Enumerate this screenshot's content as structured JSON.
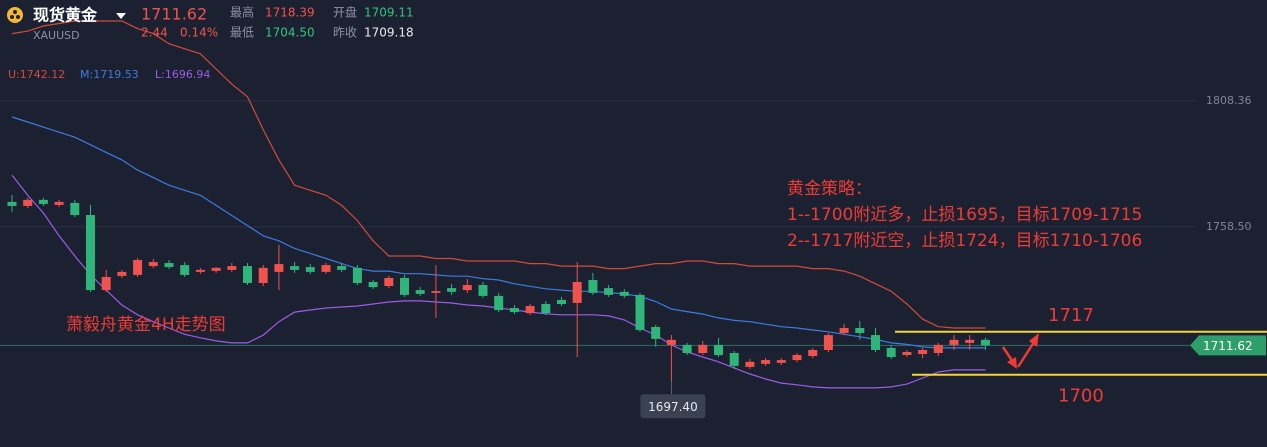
{
  "header": {
    "name": "现货黄金",
    "symbol": "XAUUSD",
    "price": "1711.62",
    "change": "2.44",
    "change_pct": "0.14%",
    "high_label": "最高",
    "high": "1718.39",
    "open_label": "开盘",
    "open": "1709.11",
    "low_label": "最低",
    "low": "1704.50",
    "prev_close_label": "昨收",
    "prev_close": "1709.18"
  },
  "chart_data": {
    "type": "candlestick",
    "open": [
      1768.4,
      1766.8,
      1769.2,
      1767.2,
      1768.0,
      1763.2,
      1733.5,
      1739.1,
      1739.5,
      1743.0,
      1744.2,
      1743.4,
      1740.7,
      1741.1,
      1741.5,
      1743.0,
      1736.3,
      1740.7,
      1743.0,
      1742.6,
      1740.7,
      1743.0,
      1742.3,
      1736.7,
      1735.1,
      1738.3,
      1733.5,
      1732.4,
      1734.3,
      1733.5,
      1735.5,
      1731.2,
      1726.4,
      1724.4,
      1728.0,
      1729.6,
      1728.4,
      1737.5,
      1734.3,
      1732.8,
      1731.6,
      1718.9,
      1711.8,
      1711.8,
      1708.6,
      1711.8,
      1708.6,
      1703.1,
      1704.3,
      1704.7,
      1705.8,
      1707.4,
      1709.8,
      1716.5,
      1718.5,
      1715.7,
      1710.6,
      1707.8,
      1708.2,
      1708.6,
      1711.8,
      1712.6,
      1713.8
    ],
    "high": [
      1771.1,
      1770.0,
      1770.0,
      1769.2,
      1769.2,
      1767.2,
      1741.5,
      1741.5,
      1746.2,
      1745.8,
      1745.4,
      1744.6,
      1742.2,
      1742.6,
      1744.2,
      1744.2,
      1743.4,
      1751.4,
      1744.6,
      1743.8,
      1744.2,
      1744.2,
      1743.4,
      1737.5,
      1739.1,
      1739.5,
      1734.7,
      1743.4,
      1735.9,
      1737.9,
      1736.7,
      1732.4,
      1727.6,
      1728.0,
      1729.2,
      1730.8,
      1744.6,
      1740.3,
      1735.5,
      1733.9,
      1732.4,
      1719.7,
      1715.7,
      1712.6,
      1713.4,
      1714.6,
      1709.4,
      1706.2,
      1706.6,
      1706.6,
      1708.6,
      1710.6,
      1716.5,
      1720.1,
      1721.3,
      1718.5,
      1711.8,
      1709.8,
      1710.6,
      1712.6,
      1715.7,
      1715.7,
      1714.6
    ],
    "low": [
      1764.4,
      1766.0,
      1766.8,
      1766.4,
      1762.4,
      1732.8,
      1732.8,
      1738.3,
      1738.7,
      1742.2,
      1741.8,
      1738.7,
      1739.9,
      1740.3,
      1740.7,
      1735.5,
      1735.1,
      1733.5,
      1740.3,
      1739.9,
      1739.9,
      1740.7,
      1735.5,
      1733.9,
      1734.3,
      1730.8,
      1731.2,
      1722.5,
      1731.6,
      1732.4,
      1730.4,
      1724.8,
      1724.0,
      1723.6,
      1723.6,
      1727.2,
      1707.0,
      1731.6,
      1730.8,
      1730.4,
      1716.9,
      1711.0,
      1697.4,
      1707.8,
      1707.8,
      1707.0,
      1702.3,
      1702.3,
      1703.5,
      1703.9,
      1705.0,
      1706.6,
      1709.0,
      1715.7,
      1713.8,
      1709.0,
      1706.2,
      1707.0,
      1706.6,
      1707.4,
      1709.8,
      1709.8,
      1709.8
    ],
    "close": [
      1766.8,
      1769.2,
      1767.6,
      1768.4,
      1763.2,
      1733.5,
      1738.7,
      1740.7,
      1745.4,
      1744.6,
      1742.6,
      1739.5,
      1741.5,
      1742.3,
      1743.0,
      1736.3,
      1742.3,
      1743.8,
      1741.5,
      1740.7,
      1743.4,
      1741.5,
      1736.3,
      1734.7,
      1738.3,
      1731.6,
      1732.0,
      1733.1,
      1732.8,
      1735.5,
      1731.2,
      1725.6,
      1724.8,
      1727.2,
      1724.4,
      1728.0,
      1736.7,
      1732.4,
      1731.6,
      1731.2,
      1717.7,
      1714.2,
      1713.8,
      1708.6,
      1711.8,
      1707.8,
      1703.5,
      1705.1,
      1705.8,
      1705.8,
      1707.8,
      1709.8,
      1715.7,
      1718.5,
      1716.5,
      1709.8,
      1707.0,
      1709.0,
      1709.8,
      1711.8,
      1713.8,
      1713.8,
      1711.62
    ],
    "up_color": "#f0524d",
    "down_color": "#2fb57a",
    "bands": [
      {
        "name": "U:1742.12",
        "color": "#d24a3c",
        "values": [
          1835,
          1836,
          1838,
          1839,
          1840,
          1840,
          1840,
          1840,
          1837,
          1835,
          1831,
          1829,
          1827,
          1821,
          1815,
          1810,
          1797,
          1785,
          1775,
          1773,
          1771,
          1767,
          1761,
          1753,
          1747,
          1747,
          1747,
          1746,
          1746,
          1745,
          1745,
          1745,
          1745,
          1744,
          1744,
          1743,
          1743,
          1743,
          1742,
          1742,
          1743,
          1744,
          1744,
          1745,
          1745,
          1744,
          1744,
          1743,
          1743,
          1743,
          1743,
          1742,
          1742,
          1741,
          1739,
          1736,
          1733,
          1728,
          1722,
          1719,
          1718.5,
          1718.5,
          1718.5
        ]
      },
      {
        "name": "M:1719.53",
        "color": "#3d7be0",
        "values": [
          1802,
          1800,
          1798,
          1796,
          1794,
          1791,
          1788,
          1785,
          1781,
          1778,
          1775,
          1773,
          1771,
          1767,
          1763,
          1759,
          1755,
          1753,
          1750,
          1748,
          1746,
          1744,
          1742,
          1741,
          1741,
          1740,
          1740,
          1739.5,
          1739,
          1739,
          1738,
          1737.5,
          1736,
          1735,
          1734,
          1733.5,
          1733,
          1733,
          1732.5,
          1732,
          1731,
          1729,
          1726,
          1725,
          1724,
          1722.5,
          1721.5,
          1721,
          1720,
          1719,
          1718.5,
          1717.7,
          1717,
          1716,
          1715,
          1714,
          1712.6,
          1712,
          1711,
          1710.6,
          1710.6,
          1710.6,
          1710.6
        ]
      },
      {
        "name": "L:1696.94",
        "color": "#9b5de5",
        "values": [
          1779,
          1771,
          1764,
          1755,
          1747,
          1739.5,
          1733.5,
          1727.6,
          1723.7,
          1721,
          1718.5,
          1716,
          1714.6,
          1713.4,
          1712.6,
          1712.6,
          1715.7,
          1721,
          1724.8,
          1725.6,
          1726.4,
          1726.8,
          1727.2,
          1728,
          1728.8,
          1729.2,
          1729.2,
          1728.8,
          1728.4,
          1727.6,
          1727.2,
          1726.4,
          1725.6,
          1724.8,
          1724.1,
          1723.7,
          1723.7,
          1723.7,
          1723.3,
          1721.7,
          1718.5,
          1715.7,
          1711.8,
          1709,
          1707,
          1705.1,
          1702.7,
          1700.3,
          1698.3,
          1696.7,
          1696,
          1695.2,
          1694.8,
          1694.8,
          1694.8,
          1694.8,
          1695.2,
          1696.3,
          1698.7,
          1701.1,
          1701.9,
          1701.9,
          1701.9
        ]
      }
    ],
    "ylim": [
      1671.4,
      1848.3
    ],
    "yticks": [
      {
        "value": 1808.36,
        "label": "1808.36"
      },
      {
        "value": 1758.5,
        "label": "1758.50"
      }
    ],
    "grid": true,
    "last_price": {
      "value": 1711.62,
      "label": "1711.62",
      "color": "#2e9e6a"
    },
    "low_marker": {
      "value": 1697.4,
      "label": "1697.40"
    },
    "levels": [
      1717,
      1700
    ],
    "level_color": "#f2d43a",
    "annotations": {
      "strategy_title": "黄金策略：",
      "strategy_1": "1--1700附近多，止损1695，目标1709-1715",
      "strategy_2": "2--1717附近空，止损1724，目标1710-1706",
      "caption": "萧毅舟黄金4H走势图"
    }
  }
}
